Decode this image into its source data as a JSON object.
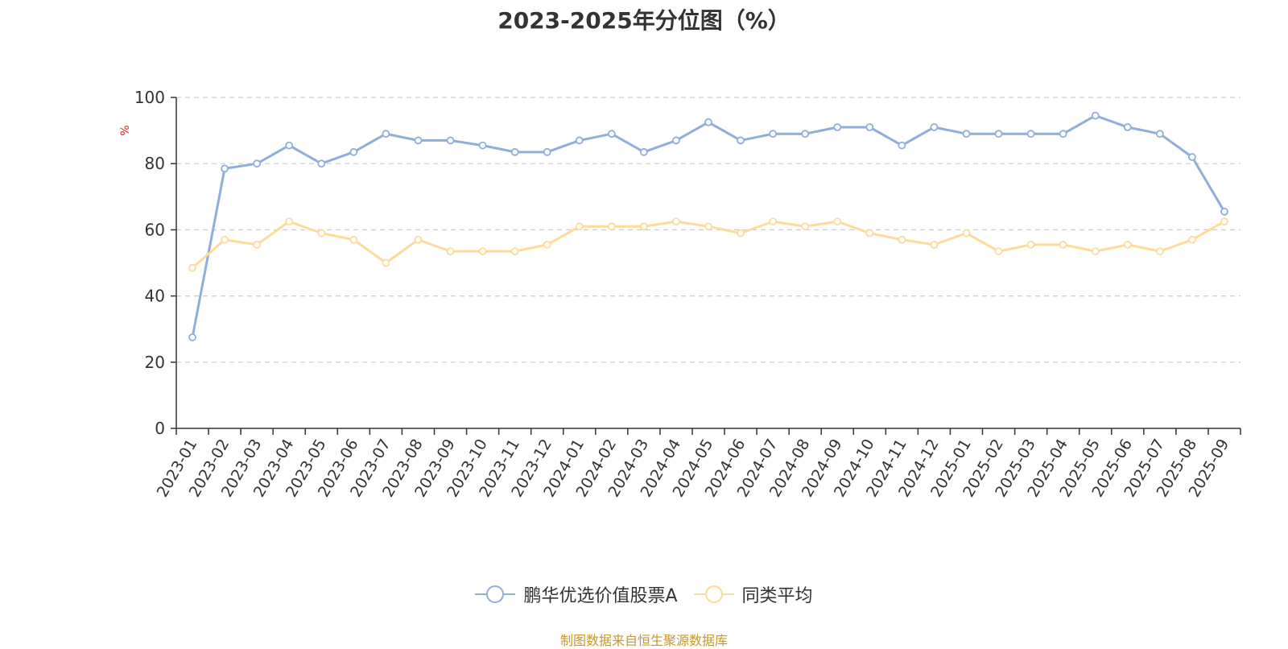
{
  "chart_data": {
    "type": "line",
    "title": "2023-2025年分位图（%）",
    "ylabel": "%",
    "ylim": [
      0,
      100
    ],
    "yticks": [
      0,
      20,
      40,
      60,
      80,
      100
    ],
    "grid": true,
    "legend_position": "bottom",
    "categories": [
      "2023-01",
      "2023-02",
      "2023-03",
      "2023-04",
      "2023-05",
      "2023-06",
      "2023-07",
      "2023-08",
      "2023-09",
      "2023-10",
      "2023-11",
      "2023-12",
      "2024-01",
      "2024-02",
      "2024-03",
      "2024-04",
      "2024-05",
      "2024-06",
      "2024-07",
      "2024-08",
      "2024-09",
      "2024-10",
      "2024-11",
      "2024-12",
      "2025-01",
      "2025-02",
      "2025-03",
      "2025-04",
      "2025-05",
      "2025-06",
      "2025-07",
      "2025-08",
      "2025-09"
    ],
    "series": [
      {
        "name": "鹏华优选价值股票A",
        "color": "#8eaedb",
        "values": [
          27.5,
          78.5,
          80,
          85.5,
          80,
          83.5,
          89,
          87,
          87,
          85.5,
          83.5,
          83.5,
          87,
          89,
          83.5,
          87,
          92.5,
          87,
          89,
          89,
          91,
          91,
          85.5,
          91,
          89,
          89,
          89,
          89,
          94.5,
          91,
          89,
          82,
          65.5
        ]
      },
      {
        "name": "同类平均",
        "color": "#fddb9a",
        "values": [
          48.5,
          57,
          55.5,
          62.5,
          59,
          57,
          50,
          57,
          53.5,
          53.5,
          53.5,
          55.5,
          61,
          61,
          61,
          62.5,
          61,
          59,
          62.5,
          61,
          62.5,
          59,
          57,
          55.5,
          59,
          53.5,
          55.5,
          55.5,
          53.5,
          55.5,
          53.5,
          57,
          62.5
        ]
      }
    ]
  },
  "footer": {
    "source": "制图数据来自恒生聚源数据库"
  }
}
